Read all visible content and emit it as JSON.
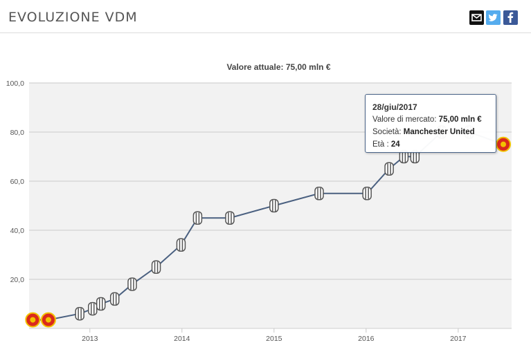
{
  "header": {
    "title": "EVOLUZIONE VDM",
    "share_icons": [
      "email-icon",
      "twitter-icon",
      "facebook-icon"
    ]
  },
  "colors": {
    "line": "#4a6080",
    "grid": "#d8d8d8",
    "plot_bg": "#f2f2f2",
    "email": "#111111",
    "twitter": "#55acee",
    "facebook": "#3b5998",
    "man_utd_badge": "#da291c",
    "juventus_badge": "#555555"
  },
  "chart_data": {
    "type": "line",
    "title": "Valore attuale: 75,00 mln €",
    "xlabel": "",
    "ylabel": "",
    "ylim": [
      0,
      100
    ],
    "y_ticks": [
      {
        "value": 20,
        "label": "20,0"
      },
      {
        "value": 40,
        "label": "40,0"
      },
      {
        "value": 60,
        "label": "60,0"
      },
      {
        "value": 80,
        "label": "80,0"
      },
      {
        "value": 100,
        "label": "100,0"
      }
    ],
    "xlim": [
      2012.34,
      2017.58
    ],
    "x_ticks": [
      {
        "value": 2013,
        "label": "2013"
      },
      {
        "value": 2014,
        "label": "2014"
      },
      {
        "value": 2015,
        "label": "2015"
      },
      {
        "value": 2016,
        "label": "2016"
      },
      {
        "value": 2017,
        "label": "2017"
      }
    ],
    "grid": true,
    "series": [
      {
        "points": [
          {
            "x": 2012.38,
            "y": 3.5,
            "club": "Manchester United"
          },
          {
            "x": 2012.55,
            "y": 3.5,
            "club": "Manchester United"
          },
          {
            "x": 2012.89,
            "y": 6,
            "club": "Juventus"
          },
          {
            "x": 2013.03,
            "y": 8,
            "club": "Juventus"
          },
          {
            "x": 2013.12,
            "y": 10,
            "club": "Juventus"
          },
          {
            "x": 2013.27,
            "y": 12,
            "club": "Juventus"
          },
          {
            "x": 2013.46,
            "y": 18,
            "club": "Juventus"
          },
          {
            "x": 2013.72,
            "y": 25,
            "club": "Juventus"
          },
          {
            "x": 2013.99,
            "y": 34,
            "club": "Juventus"
          },
          {
            "x": 2014.17,
            "y": 45,
            "club": "Juventus"
          },
          {
            "x": 2014.52,
            "y": 45,
            "club": "Juventus"
          },
          {
            "x": 2015.0,
            "y": 50,
            "club": "Juventus"
          },
          {
            "x": 2015.49,
            "y": 55,
            "club": "Juventus"
          },
          {
            "x": 2016.01,
            "y": 55,
            "club": "Juventus"
          },
          {
            "x": 2016.25,
            "y": 65,
            "club": "Juventus"
          },
          {
            "x": 2016.41,
            "y": 70,
            "club": "Juventus"
          },
          {
            "x": 2016.53,
            "y": 70,
            "club": "Juventus"
          },
          {
            "x": 2016.82,
            "y": 80,
            "club": "Juventus"
          },
          {
            "x": 2017.12,
            "y": 80,
            "club": "Juventus"
          },
          {
            "x": 2017.49,
            "y": 75,
            "club": "Manchester United"
          }
        ]
      }
    ],
    "tooltip": {
      "date": "28/giu/2017",
      "value_label": "Valore di mercato:",
      "value": "75,00 mln €",
      "club_label": "Società:",
      "club": "Manchester United",
      "age_label": "Età :",
      "age": "24"
    }
  }
}
